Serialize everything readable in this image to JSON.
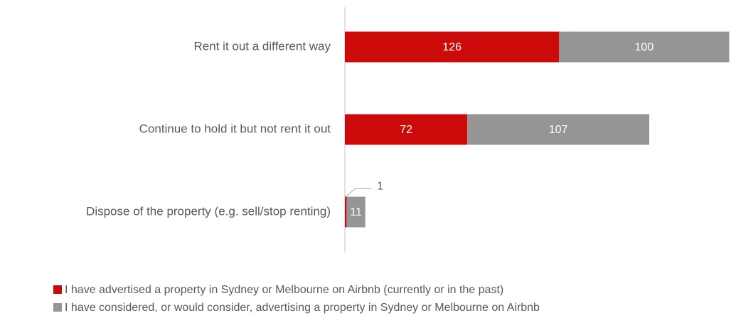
{
  "chart_data": {
    "type": "bar",
    "orientation": "horizontal",
    "stacked": true,
    "categories": [
      "Rent it out a different way",
      "Continue to hold it but not rent it out",
      "Dispose of the property (e.g. sell/stop renting)"
    ],
    "series": [
      {
        "name": "I have advertised a property in Sydney or Melbourne on Airbnb (currently or in the past)",
        "color": "#cc0a0a",
        "values": [
          126,
          72,
          1
        ]
      },
      {
        "name": "I have considered, or would consider, advertising a property in Sydney or Melbourne on Airbnb",
        "color": "#959595",
        "values": [
          100,
          107,
          11
        ]
      }
    ],
    "xlim": [
      0,
      230
    ],
    "legend": "bottom"
  }
}
